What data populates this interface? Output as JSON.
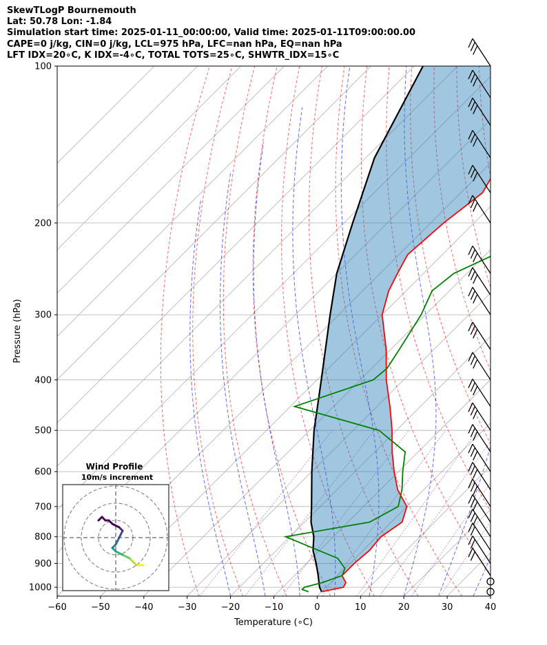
{
  "header": {
    "line1": "SkewTLogP Bournemouth",
    "line2": "Lat: 50.78   Lon: -1.84",
    "line3": "Simulation start time: 2025-01-11_00:00:00, Valid time: 2025-01-11T09:00:00.00",
    "line4": "CAPE=0 j/kg, CIN=0 j/kg, LCL=975 hPa, LFC=nan hPa, EQ=nan hPa",
    "line5": "LFT IDX=20∘C, K IDX=-4∘C, TOTAL TOTS=25∘C, SHWTR_IDX=15∘C"
  },
  "chart_data": {
    "type": "skewt",
    "xlabel": "Temperature (∘C)",
    "ylabel": "Pressure (hPa)",
    "xlim": [
      -60,
      40
    ],
    "ylim": [
      1040,
      100
    ],
    "yscale": "log",
    "grid": true,
    "x_ticks": [
      -60,
      -50,
      -40,
      -30,
      -20,
      -10,
      0,
      10,
      20,
      30,
      40
    ],
    "y_ticks": [
      100,
      200,
      300,
      400,
      500,
      600,
      700,
      800,
      900,
      1000
    ],
    "colors": {
      "temperature": "#ff0000",
      "dewpoint": "#008000",
      "parcel": "#000000",
      "cape_fill": "#1f77b4",
      "dry_adiabat": "#ff0000",
      "moist_adiabat": "#0000ff",
      "mixing_ratio": "#8e44ad",
      "isotherm": "#808080"
    },
    "temperature": {
      "p": [
        1020,
        1000,
        980,
        950,
        920,
        900,
        850,
        800,
        750,
        700,
        650,
        600,
        550,
        500,
        450,
        400,
        350,
        300,
        270,
        250,
        230,
        200,
        175,
        160,
        140,
        120,
        100
      ],
      "t": [
        0,
        4,
        3.5,
        1,
        1,
        1,
        1.5,
        1,
        2.5,
        0,
        -6,
        -11,
        -16,
        -21,
        -27,
        -34,
        -41,
        -50,
        -54,
        -56,
        -58,
        -57,
        -55,
        -57,
        -62,
        -66,
        -71
      ]
    },
    "dewpoint": {
      "p": [
        1020,
        1010,
        1000,
        980,
        950,
        920,
        880,
        800,
        750,
        700,
        650,
        600,
        550,
        500,
        450,
        400,
        380,
        350,
        300,
        270,
        250,
        230,
        200,
        190,
        170,
        100
      ],
      "t": [
        -3,
        -5,
        -5,
        -2,
        1,
        0,
        -4,
        -21,
        -5,
        -2,
        -5,
        -9,
        -13,
        -24,
        -49,
        -37,
        -36.5,
        -38,
        -41,
        -44,
        -43,
        -38,
        -35,
        -35,
        -37,
        -47
      ]
    },
    "parcel": {
      "p": [
        1020,
        1000,
        975,
        950,
        900,
        850,
        800,
        750,
        700,
        600,
        500,
        400,
        300,
        250,
        200,
        150,
        100
      ],
      "t": [
        0,
        -1.5,
        -3,
        -4.5,
        -7.8,
        -11.5,
        -14.5,
        -18.5,
        -22,
        -30,
        -39,
        -49,
        -62,
        -70,
        -78,
        -88,
        -98
      ]
    },
    "wind_barbs": {
      "p": [
        1020,
        975,
        950,
        900,
        850,
        800,
        750,
        700,
        650,
        600,
        550,
        500,
        450,
        400,
        350,
        300,
        275,
        250,
        200,
        175,
        150,
        130,
        115,
        100
      ],
      "speed_kt": [
        0,
        0,
        15,
        15,
        15,
        25,
        25,
        30,
        30,
        30,
        35,
        35,
        35,
        40,
        40,
        45,
        50,
        55,
        55,
        55,
        60,
        60,
        60,
        60
      ]
    },
    "inset": {
      "title_line1": "Wind Profile",
      "title_line2": "10m/s increment",
      "hodograph_u": [
        8,
        6,
        4,
        2,
        0,
        -1,
        0,
        1,
        2,
        1,
        -1,
        -2,
        -3,
        -4,
        -5
      ],
      "hodograph_v": [
        -8,
        -8,
        -6,
        -5,
        -4,
        -3,
        -2,
        0,
        2,
        3,
        4,
        5,
        5,
        6,
        5
      ]
    }
  }
}
